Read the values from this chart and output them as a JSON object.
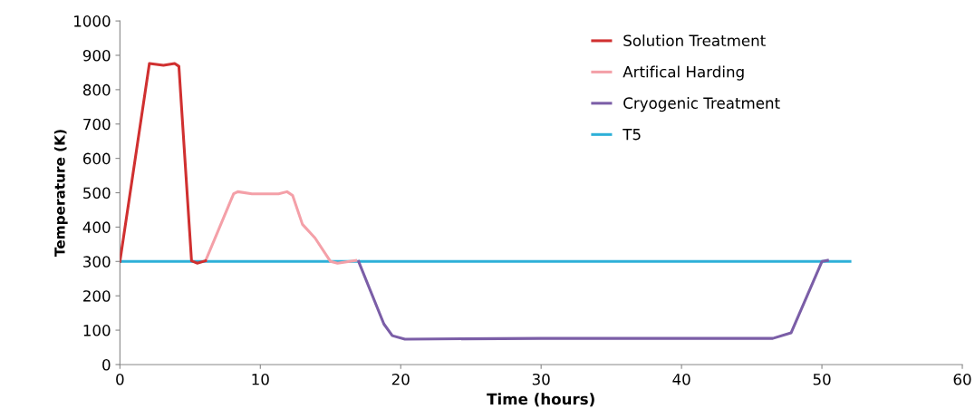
{
  "chart_data": {
    "type": "line",
    "xlabel": "Time (hours)",
    "ylabel": "Temperature (K)",
    "xlim": [
      0,
      60
    ],
    "xticks": [
      0,
      10,
      20,
      30,
      40,
      50,
      60
    ],
    "ylim": [
      0,
      1000
    ],
    "yticks": [
      0,
      100,
      200,
      300,
      400,
      500,
      600,
      700,
      800,
      900,
      1000
    ],
    "grid": false,
    "legend": "top right",
    "marker": "none",
    "line_style": "solid",
    "series": [
      {
        "name": "Solution Treatment",
        "color": "#d03030",
        "x": [
          0,
          2.1,
          3.1,
          3.9,
          4.2,
          5.1,
          5.5,
          6.1
        ],
        "values": [
          300,
          876,
          871,
          876,
          868,
          302,
          295,
          302
        ]
      },
      {
        "name": "Artifical Harding",
        "color": "#f4a0a8",
        "x": [
          6.1,
          8.1,
          8.4,
          9.4,
          11.3,
          11.9,
          12.3,
          13.0,
          13.9,
          15.0,
          15.5,
          16.8
        ],
        "values": [
          302,
          497,
          503,
          497,
          497,
          503,
          492,
          408,
          368,
          300,
          295,
          303
        ]
      },
      {
        "name": "Cryogenic Treatment",
        "color": "#7b5ea7",
        "x": [
          17.0,
          18.8,
          19.4,
          20.3,
          30,
          40,
          46.5,
          47.8,
          50.0,
          50.4
        ],
        "values": [
          300,
          118,
          84,
          74,
          76,
          76,
          76,
          92,
          300,
          303
        ]
      },
      {
        "name": "T5",
        "color": "#2eb0d8",
        "x": [
          0,
          52
        ],
        "values": [
          300,
          300
        ]
      }
    ]
  }
}
